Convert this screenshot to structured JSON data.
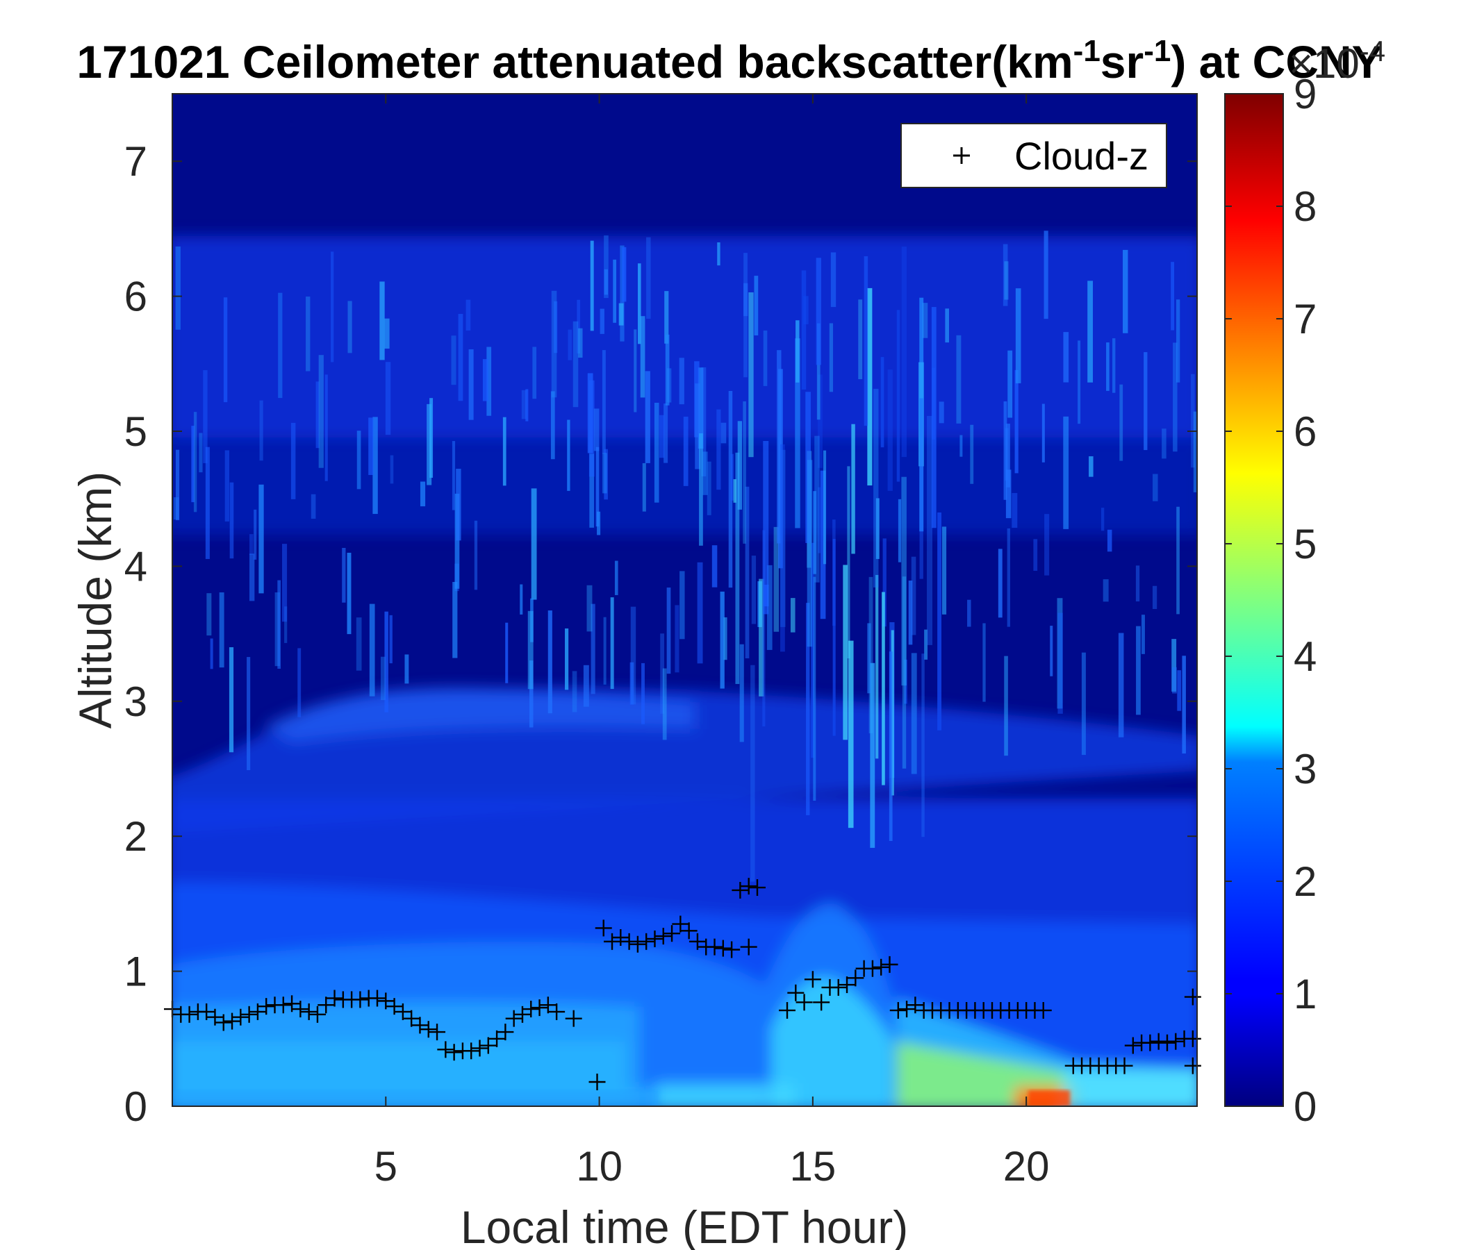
{
  "chart_data": {
    "type": "heatmap",
    "title": {
      "prefix": "171021 Ceilometer attenuated backscatter(km",
      "sup1": "-1",
      "mid": "sr",
      "sup2": "-1",
      "suffix": ") at CCNY"
    },
    "xlabel": "Local time (EDT hour)",
    "ylabel": "Altitude (km)",
    "xlim": [
      0,
      24
    ],
    "ylim": [
      0,
      7.5
    ],
    "xticks": [
      5,
      10,
      15,
      20
    ],
    "yticks": [
      0,
      1,
      2,
      3,
      4,
      5,
      6,
      7
    ],
    "colorbar": {
      "colormap": "jet",
      "range": [
        0,
        9
      ],
      "ticks": [
        0,
        1,
        2,
        3,
        4,
        5,
        6,
        7,
        8,
        9
      ],
      "multiplier": "×10",
      "multiplier_exponent": "-4"
    },
    "legend": {
      "position": "top-right",
      "entries": [
        "Cloud-z"
      ]
    },
    "series": [
      {
        "name": "Cloud-z",
        "marker": "+",
        "color": "#000000",
        "x": [
          0.0,
          0.2,
          0.4,
          0.6,
          0.8,
          1.0,
          1.2,
          1.4,
          1.6,
          1.8,
          2.0,
          2.2,
          2.4,
          2.6,
          2.8,
          3.0,
          3.2,
          3.4,
          3.6,
          3.8,
          4.0,
          4.2,
          4.4,
          4.6,
          4.8,
          5.0,
          5.2,
          5.4,
          5.6,
          5.8,
          6.0,
          6.2,
          6.4,
          6.6,
          6.8,
          7.0,
          7.2,
          7.4,
          7.6,
          7.8,
          8.0,
          8.2,
          8.4,
          8.6,
          8.8,
          9.0,
          9.4,
          9.95,
          10.1,
          10.3,
          10.5,
          10.7,
          10.9,
          11.1,
          11.3,
          11.5,
          11.7,
          11.9,
          12.1,
          12.3,
          12.5,
          12.7,
          12.9,
          13.1,
          13.3,
          13.5,
          13.7,
          13.5,
          14.4,
          14.6,
          14.8,
          15.0,
          15.2,
          15.4,
          15.6,
          15.8,
          16.0,
          16.2,
          16.4,
          16.6,
          16.8,
          17.0,
          17.2,
          17.4,
          17.6,
          17.8,
          18.0,
          18.2,
          18.4,
          18.6,
          18.8,
          19.0,
          19.2,
          19.4,
          19.6,
          19.8,
          20.0,
          20.2,
          20.4,
          21.1,
          21.3,
          21.5,
          21.7,
          21.9,
          22.1,
          22.3,
          22.5,
          22.7,
          22.9,
          23.1,
          23.3,
          23.5,
          23.7,
          23.9,
          23.9,
          23.9
        ],
        "y": [
          0.72,
          0.68,
          0.68,
          0.7,
          0.7,
          0.66,
          0.62,
          0.63,
          0.66,
          0.68,
          0.7,
          0.74,
          0.75,
          0.75,
          0.76,
          0.72,
          0.7,
          0.68,
          0.75,
          0.8,
          0.79,
          0.79,
          0.79,
          0.8,
          0.8,
          0.78,
          0.74,
          0.7,
          0.65,
          0.6,
          0.57,
          0.55,
          0.42,
          0.4,
          0.41,
          0.41,
          0.43,
          0.45,
          0.5,
          0.55,
          0.65,
          0.68,
          0.72,
          0.73,
          0.75,
          0.7,
          0.65,
          0.18,
          1.32,
          1.22,
          1.25,
          1.22,
          1.2,
          1.22,
          1.24,
          1.26,
          1.28,
          1.35,
          1.3,
          1.22,
          1.18,
          1.18,
          1.17,
          1.16,
          1.6,
          1.63,
          1.62,
          1.18,
          0.71,
          0.84,
          0.77,
          0.94,
          0.77,
          0.88,
          0.88,
          0.9,
          0.95,
          1.02,
          1.02,
          1.03,
          1.05,
          0.71,
          0.72,
          0.75,
          0.71,
          0.71,
          0.71,
          0.71,
          0.71,
          0.71,
          0.71,
          0.71,
          0.71,
          0.71,
          0.71,
          0.71,
          0.71,
          0.71,
          0.71,
          0.3,
          0.3,
          0.3,
          0.3,
          0.3,
          0.3,
          0.3,
          0.45,
          0.47,
          0.47,
          0.48,
          0.47,
          0.48,
          0.5,
          0.81,
          0.5,
          0.3
        ]
      }
    ]
  }
}
